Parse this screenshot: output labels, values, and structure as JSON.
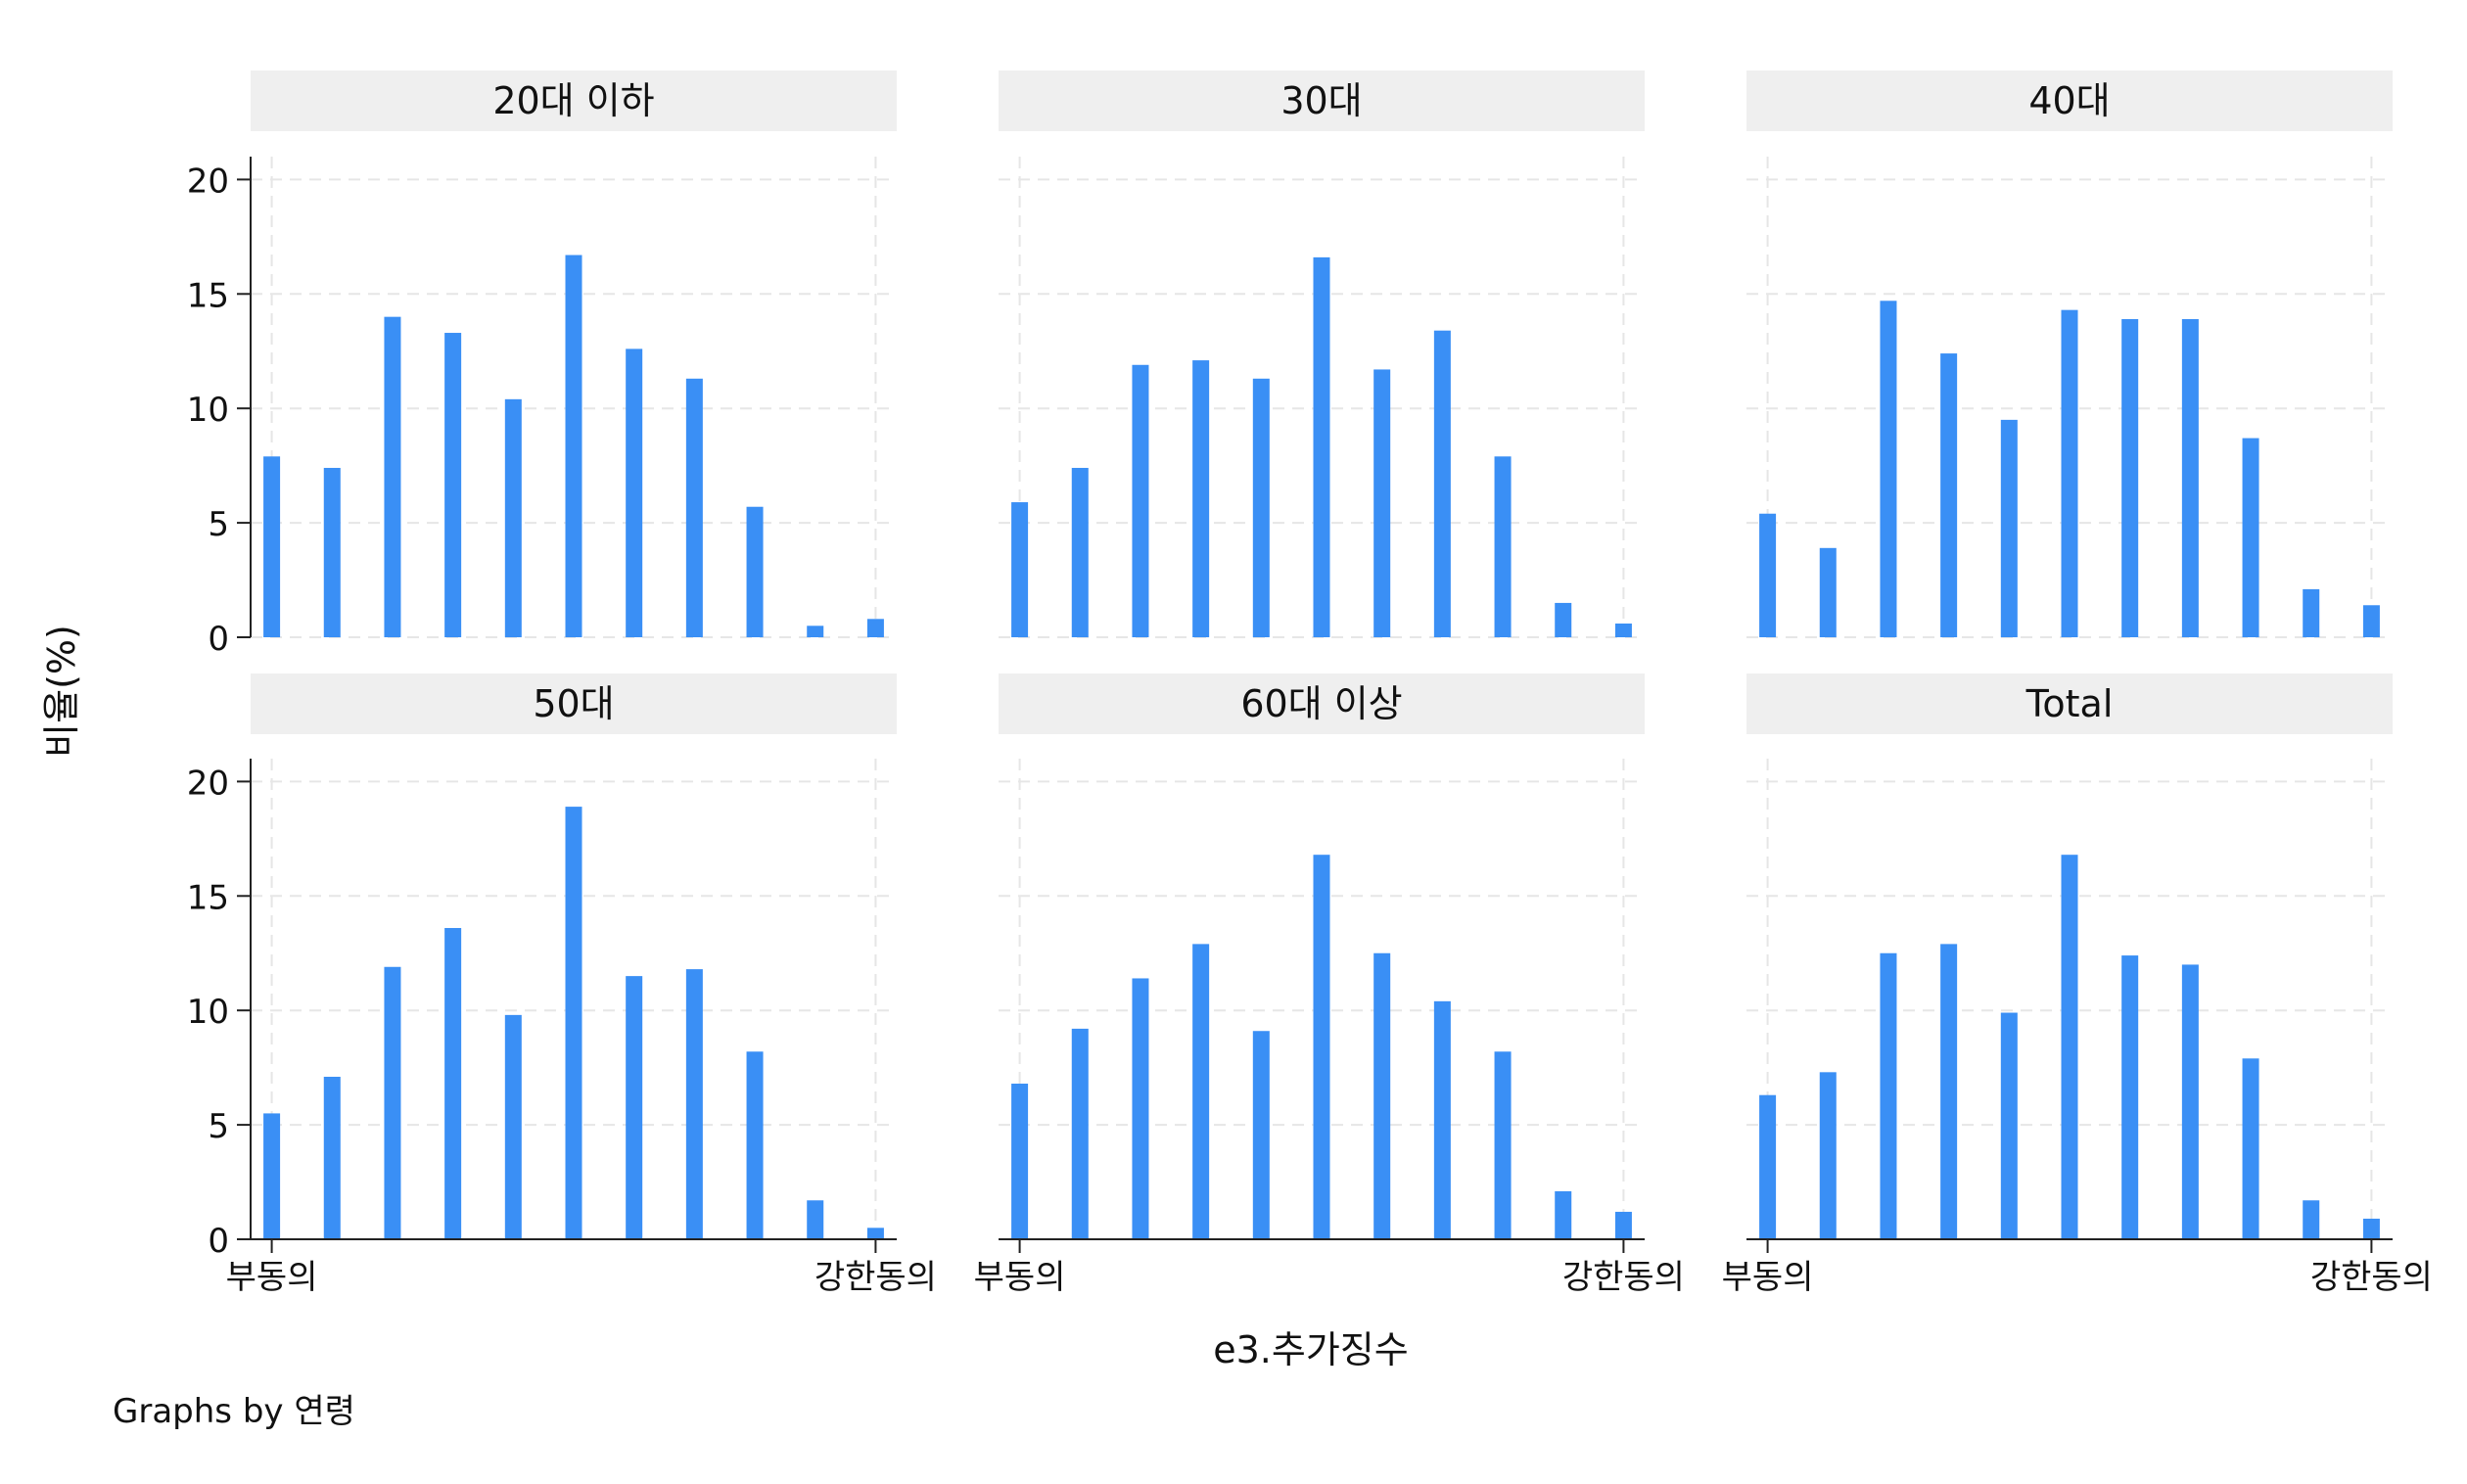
{
  "chart_data": {
    "type": "bar",
    "layout": "2x3 small multiples (by group)",
    "ylabel": "비율(%)",
    "xlabel": "e3.추가징수",
    "note": "Graphs by 연령",
    "ylim": [
      0,
      21
    ],
    "yticks": [
      0,
      5,
      10,
      15,
      20
    ],
    "xlim": [
      -0.35,
      10.35
    ],
    "xticks": [
      {
        "value": 0,
        "label": "부동의"
      },
      {
        "value": 10,
        "label": "강한동의"
      }
    ],
    "x": [
      0,
      1,
      2,
      3,
      4,
      5,
      6,
      7,
      8,
      9,
      10
    ],
    "grid": "dashed vertical and horizontal",
    "bar_color": "#3a8ff5",
    "panel_header_color": "#efefef",
    "panels": [
      {
        "title": "20대 이하",
        "values": [
          7.9,
          7.4,
          14.0,
          13.3,
          10.4,
          16.7,
          12.6,
          11.3,
          5.7,
          0.5,
          0.8
        ]
      },
      {
        "title": "30대",
        "values": [
          5.9,
          7.4,
          11.9,
          12.1,
          11.3,
          16.6,
          11.7,
          13.4,
          7.9,
          1.5,
          0.6
        ]
      },
      {
        "title": "40대",
        "values": [
          5.4,
          3.9,
          14.7,
          12.4,
          9.5,
          14.3,
          13.9,
          13.9,
          8.7,
          2.1,
          1.4
        ]
      },
      {
        "title": "50대",
        "values": [
          5.5,
          7.1,
          11.9,
          13.6,
          9.8,
          18.9,
          11.5,
          11.8,
          8.2,
          1.7,
          0.5
        ]
      },
      {
        "title": "60대 이상",
        "values": [
          6.8,
          9.2,
          11.4,
          12.9,
          9.1,
          16.8,
          12.5,
          10.4,
          8.2,
          2.1,
          1.2
        ]
      },
      {
        "title": "Total",
        "values": [
          6.3,
          7.3,
          12.5,
          12.9,
          9.9,
          16.8,
          12.4,
          12.0,
          7.9,
          1.7,
          0.9
        ]
      }
    ]
  }
}
